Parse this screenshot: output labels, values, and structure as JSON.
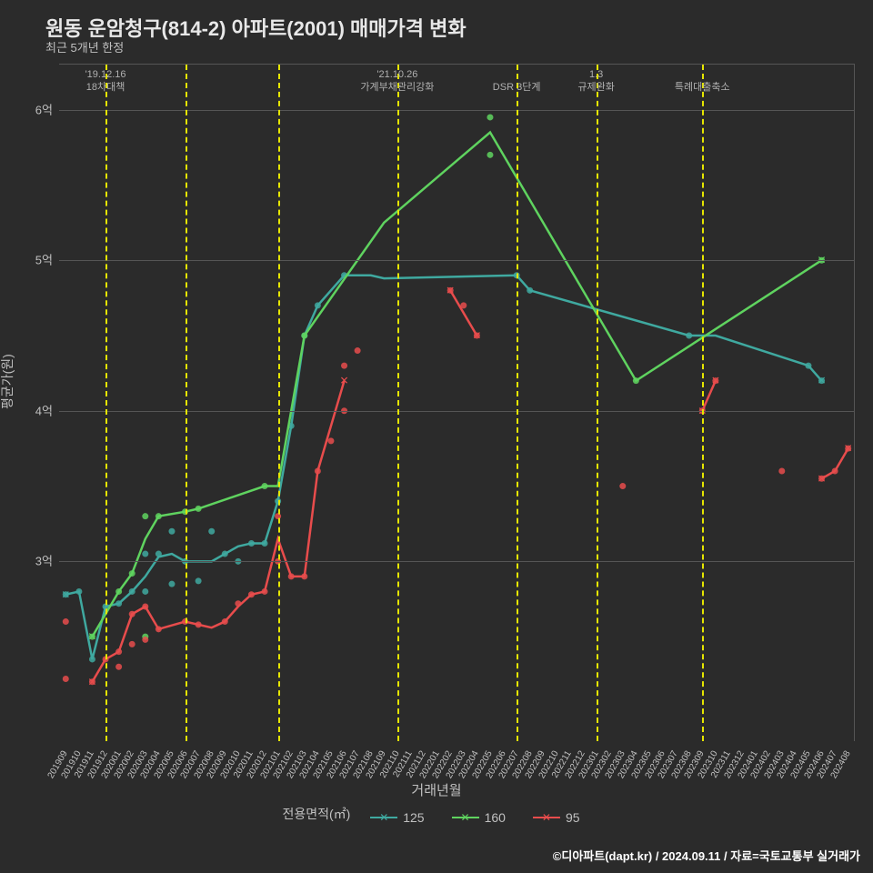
{
  "title": "원동 운암청구(814-2) 아파트(2001) 매매가격 변화",
  "subtitle": "최근 5개년 한정",
  "ylabel": "평균가(원)",
  "xlabel": "거래년월",
  "legend_title": "전용면적(㎡)",
  "footer": "©디아파트(dapt.kr) / 2024.09.11 / 자료=국토교통부 실거래가",
  "background_color": "#2b2b2b",
  "grid_color": "#555555",
  "text_color": "#c0c0c0",
  "ymin": 1.8,
  "ymax": 6.3,
  "yticks": [
    {
      "v": 3,
      "label": "3억"
    },
    {
      "v": 4,
      "label": "4억"
    },
    {
      "v": 5,
      "label": "5억"
    },
    {
      "v": 6,
      "label": "6억"
    }
  ],
  "x_categories": [
    "201909",
    "201910",
    "201911",
    "201912",
    "202001",
    "202002",
    "202003",
    "202004",
    "202005",
    "202006",
    "202007",
    "202008",
    "202009",
    "202010",
    "202011",
    "202012",
    "202101",
    "202102",
    "202103",
    "202104",
    "202105",
    "202106",
    "202107",
    "202108",
    "202109",
    "202110",
    "202111",
    "202112",
    "202201",
    "202202",
    "202203",
    "202204",
    "202205",
    "202206",
    "202207",
    "202208",
    "202209",
    "202210",
    "202211",
    "202212",
    "202301",
    "202302",
    "202303",
    "202304",
    "202305",
    "202306",
    "202307",
    "202308",
    "202309",
    "202310",
    "202311",
    "202312",
    "202401",
    "202402",
    "202403",
    "202404",
    "202405",
    "202406",
    "202407",
    "202408"
  ],
  "vlines": [
    {
      "x": "201912",
      "color": "#e6e600"
    },
    {
      "x": "202006",
      "color": "#e6e600"
    },
    {
      "x": "202101",
      "color": "#e6e600"
    },
    {
      "x": "202110",
      "color": "#e6e600"
    },
    {
      "x": "202207",
      "color": "#e6e600"
    },
    {
      "x": "202301",
      "color": "#e6e600"
    },
    {
      "x": "202309",
      "color": "#e6e600"
    }
  ],
  "annotations": [
    {
      "x": "201912",
      "line1": "'19.12.16",
      "line2": "18차대책"
    },
    {
      "x": "202110",
      "line1": "'21.10.26",
      "line2": "가계부채관리강화"
    },
    {
      "x": "202207",
      "line1": "",
      "line2": "DSR 3단계"
    },
    {
      "x": "202301",
      "line1": "1.3",
      "line2": "규제완화"
    },
    {
      "x": "202309",
      "line1": "",
      "line2": "특례대출축소"
    }
  ],
  "series": [
    {
      "name": "125",
      "color": "#3fa9a0",
      "line": [
        {
          "x": "201909",
          "y": 2.78
        },
        {
          "x": "201910",
          "y": 2.8
        },
        {
          "x": "201911",
          "y": 2.35
        },
        {
          "x": "201912",
          "y": 2.7
        },
        {
          "x": "202001",
          "y": 2.72
        },
        {
          "x": "202002",
          "y": 2.8
        },
        {
          "x": "202003",
          "y": 2.9
        },
        {
          "x": "202004",
          "y": 3.03
        },
        {
          "x": "202005",
          "y": 3.05
        },
        {
          "x": "202006",
          "y": 3.0
        },
        {
          "x": "202007",
          "y": 3.0
        },
        {
          "x": "202008",
          "y": 3.0
        },
        {
          "x": "202009",
          "y": 3.05
        },
        {
          "x": "202010",
          "y": 3.1
        },
        {
          "x": "202011",
          "y": 3.12
        },
        {
          "x": "202012",
          "y": 3.12
        },
        {
          "x": "202101",
          "y": 3.4
        },
        {
          "x": "202102",
          "y": 3.9
        },
        {
          "x": "202103",
          "y": 4.5
        },
        {
          "x": "202104",
          "y": 4.7
        },
        {
          "x": "202106",
          "y": 4.9
        },
        {
          "x": "202108",
          "y": 4.9
        },
        {
          "x": "202109",
          "y": 4.88
        },
        {
          "x": "202207",
          "y": 4.9
        },
        {
          "x": "202208",
          "y": 4.8
        },
        {
          "x": "202308",
          "y": 4.5
        },
        {
          "x": "202310",
          "y": 4.5
        },
        {
          "x": "202405",
          "y": 4.3
        },
        {
          "x": "202406",
          "y": 4.2
        }
      ],
      "points": [
        {
          "x": "201909",
          "y": 2.78
        },
        {
          "x": "201910",
          "y": 2.8
        },
        {
          "x": "201911",
          "y": 2.35
        },
        {
          "x": "201912",
          "y": 2.7
        },
        {
          "x": "202001",
          "y": 2.72
        },
        {
          "x": "202002",
          "y": 2.8
        },
        {
          "x": "202003",
          "y": 2.8
        },
        {
          "x": "202003",
          "y": 3.05
        },
        {
          "x": "202004",
          "y": 3.05
        },
        {
          "x": "202005",
          "y": 3.2
        },
        {
          "x": "202005",
          "y": 2.85
        },
        {
          "x": "202006",
          "y": 3.0
        },
        {
          "x": "202007",
          "y": 2.87
        },
        {
          "x": "202008",
          "y": 3.2
        },
        {
          "x": "202009",
          "y": 3.05
        },
        {
          "x": "202010",
          "y": 3.0
        },
        {
          "x": "202011",
          "y": 3.12
        },
        {
          "x": "202012",
          "y": 3.12
        },
        {
          "x": "202101",
          "y": 3.4
        },
        {
          "x": "202102",
          "y": 3.9
        },
        {
          "x": "202103",
          "y": 4.5
        },
        {
          "x": "202104",
          "y": 4.7
        },
        {
          "x": "202106",
          "y": 4.9
        },
        {
          "x": "202207",
          "y": 4.9
        },
        {
          "x": "202208",
          "y": 4.8
        },
        {
          "x": "202308",
          "y": 4.5
        },
        {
          "x": "202405",
          "y": 4.3
        },
        {
          "x": "202406",
          "y": 4.2
        }
      ]
    },
    {
      "name": "160",
      "color": "#5fd35f",
      "line": [
        {
          "x": "201911",
          "y": 2.5
        },
        {
          "x": "202001",
          "y": 2.8
        },
        {
          "x": "202002",
          "y": 2.92
        },
        {
          "x": "202003",
          "y": 3.15
        },
        {
          "x": "202004",
          "y": 3.3
        },
        {
          "x": "202006",
          "y": 3.33
        },
        {
          "x": "202007",
          "y": 3.35
        },
        {
          "x": "202012",
          "y": 3.5
        },
        {
          "x": "202101",
          "y": 3.5
        },
        {
          "x": "202103",
          "y": 4.5
        },
        {
          "x": "202109",
          "y": 5.25
        },
        {
          "x": "202205",
          "y": 5.85
        },
        {
          "x": "202304",
          "y": 4.2
        },
        {
          "x": "202406",
          "y": 5.0
        }
      ],
      "points": [
        {
          "x": "201911",
          "y": 2.5
        },
        {
          "x": "202001",
          "y": 2.8
        },
        {
          "x": "202002",
          "y": 2.92
        },
        {
          "x": "202003",
          "y": 3.3
        },
        {
          "x": "202003",
          "y": 2.5
        },
        {
          "x": "202004",
          "y": 3.3
        },
        {
          "x": "202006",
          "y": 3.33
        },
        {
          "x": "202007",
          "y": 3.35
        },
        {
          "x": "202012",
          "y": 3.5
        },
        {
          "x": "202103",
          "y": 4.5
        },
        {
          "x": "202205",
          "y": 5.95
        },
        {
          "x": "202205",
          "y": 5.7
        },
        {
          "x": "202304",
          "y": 4.2
        },
        {
          "x": "202406",
          "y": 5.0
        }
      ]
    },
    {
      "name": "95",
      "color": "#e84c4c",
      "line": [
        {
          "x": "201911",
          "y": 2.2
        },
        {
          "x": "201912",
          "y": 2.35
        },
        {
          "x": "202001",
          "y": 2.4
        },
        {
          "x": "202002",
          "y": 2.65
        },
        {
          "x": "202003",
          "y": 2.7
        },
        {
          "x": "202004",
          "y": 2.55
        },
        {
          "x": "202006",
          "y": 2.6
        },
        {
          "x": "202007",
          "y": 2.58
        },
        {
          "x": "202008",
          "y": 2.56
        },
        {
          "x": "202009",
          "y": 2.6
        },
        {
          "x": "202010",
          "y": 2.7
        },
        {
          "x": "202011",
          "y": 2.78
        },
        {
          "x": "202012",
          "y": 2.8
        },
        {
          "x": "202101",
          "y": 3.15
        },
        {
          "x": "202102",
          "y": 2.9
        },
        {
          "x": "202103",
          "y": 2.9
        },
        {
          "x": "202104",
          "y": 3.6
        },
        {
          "x": "202106",
          "y": 4.2
        }
      ],
      "line2": [
        {
          "x": "202202",
          "y": 4.8
        },
        {
          "x": "202204",
          "y": 4.5
        }
      ],
      "line3": [
        {
          "x": "202309",
          "y": 4.0
        },
        {
          "x": "202310",
          "y": 4.2
        }
      ],
      "line4": [
        {
          "x": "202406",
          "y": 3.55
        },
        {
          "x": "202407",
          "y": 3.6
        },
        {
          "x": "202408",
          "y": 3.75
        }
      ],
      "points": [
        {
          "x": "201909",
          "y": 2.6
        },
        {
          "x": "201909",
          "y": 2.22
        },
        {
          "x": "201911",
          "y": 2.2
        },
        {
          "x": "201912",
          "y": 2.35
        },
        {
          "x": "202001",
          "y": 2.4
        },
        {
          "x": "202001",
          "y": 2.3
        },
        {
          "x": "202002",
          "y": 2.65
        },
        {
          "x": "202002",
          "y": 2.45
        },
        {
          "x": "202003",
          "y": 2.7
        },
        {
          "x": "202003",
          "y": 2.48
        },
        {
          "x": "202004",
          "y": 2.55
        },
        {
          "x": "202006",
          "y": 2.6
        },
        {
          "x": "202007",
          "y": 2.58
        },
        {
          "x": "202009",
          "y": 2.6
        },
        {
          "x": "202010",
          "y": 2.72
        },
        {
          "x": "202011",
          "y": 2.78
        },
        {
          "x": "202012",
          "y": 2.8
        },
        {
          "x": "202101",
          "y": 3.3
        },
        {
          "x": "202101",
          "y": 3.0
        },
        {
          "x": "202102",
          "y": 2.9
        },
        {
          "x": "202103",
          "y": 2.9
        },
        {
          "x": "202104",
          "y": 3.6
        },
        {
          "x": "202105",
          "y": 3.8
        },
        {
          "x": "202106",
          "y": 4.3
        },
        {
          "x": "202106",
          "y": 4.0
        },
        {
          "x": "202107",
          "y": 4.4
        },
        {
          "x": "202202",
          "y": 4.8
        },
        {
          "x": "202203",
          "y": 4.7
        },
        {
          "x": "202204",
          "y": 4.5
        },
        {
          "x": "202303",
          "y": 3.5
        },
        {
          "x": "202309",
          "y": 4.0
        },
        {
          "x": "202310",
          "y": 4.2
        },
        {
          "x": "202403",
          "y": 3.6
        },
        {
          "x": "202406",
          "y": 3.55
        },
        {
          "x": "202407",
          "y": 3.6
        },
        {
          "x": "202408",
          "y": 3.75
        }
      ]
    }
  ]
}
